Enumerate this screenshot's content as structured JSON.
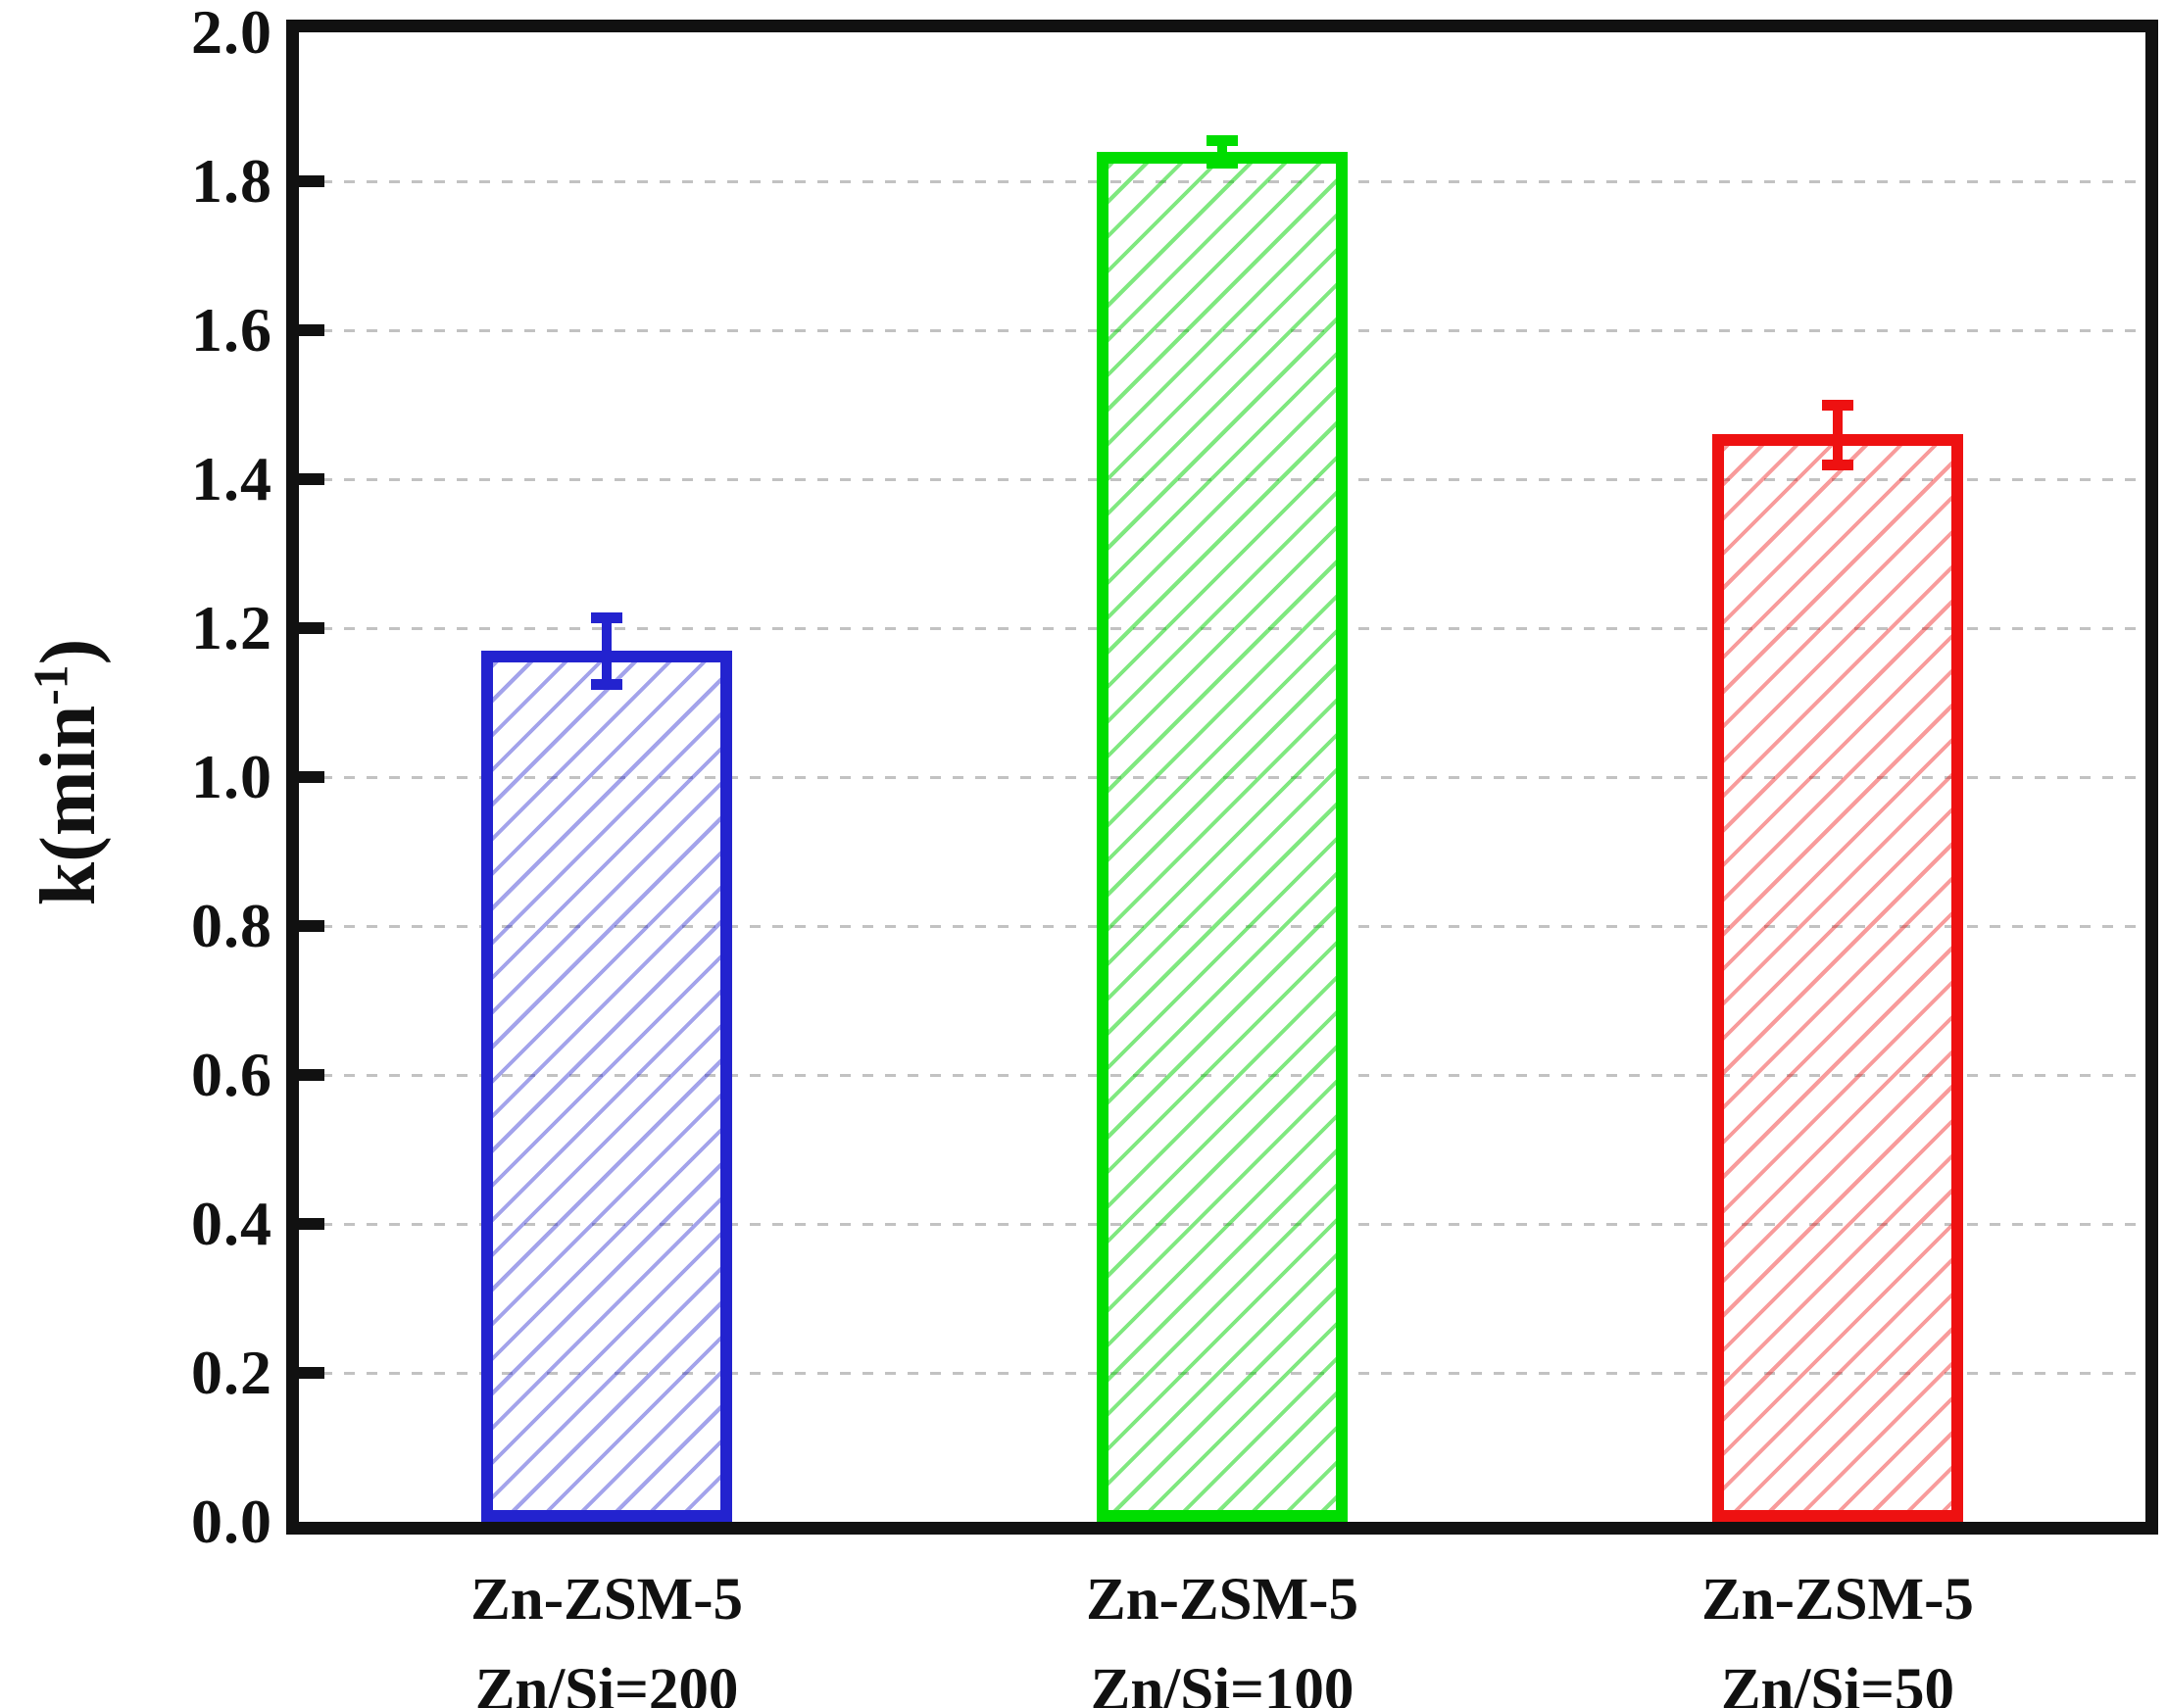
{
  "chart_data": {
    "type": "bar",
    "title": "",
    "xlabel": "",
    "ylabel": "k(min⁻¹)",
    "ylabel_parts": {
      "prefix": "k(min",
      "superscript": "-1",
      "suffix": ")"
    },
    "ylim": [
      0.0,
      2.0
    ],
    "y_tick_labels": [
      "0.0",
      "0.2",
      "0.4",
      "0.6",
      "0.8",
      "1.0",
      "1.2",
      "1.4",
      "1.6",
      "1.8",
      "2.0"
    ],
    "grid": {
      "axis": "y",
      "style": "dashed",
      "color": "#c2c2c2",
      "at_ticks": true
    },
    "legend": null,
    "categories": [
      {
        "line1": "Zn-ZSM-5",
        "line2": "Zn/Si=200"
      },
      {
        "line1": "Zn-ZSM-5",
        "line2": "Zn/Si=100"
      },
      {
        "line1": "Zn-ZSM-5",
        "line2": "Zn/Si=50"
      }
    ],
    "series": [
      {
        "name": "k",
        "values": [
          1.17,
          1.84,
          1.46
        ],
        "errors": [
          0.045,
          0.015,
          0.04
        ],
        "bar_colors": [
          "#2323cf",
          "#00dd00",
          "#ee1111"
        ],
        "hatch_colors": [
          "rgba(35,35,207,0.42)",
          "rgba(0,210,0,0.5)",
          "rgba(238,17,17,0.42)"
        ],
        "hatch_pattern": "/"
      }
    ],
    "frame_color": "#111111",
    "background_color": "#ffffff"
  }
}
